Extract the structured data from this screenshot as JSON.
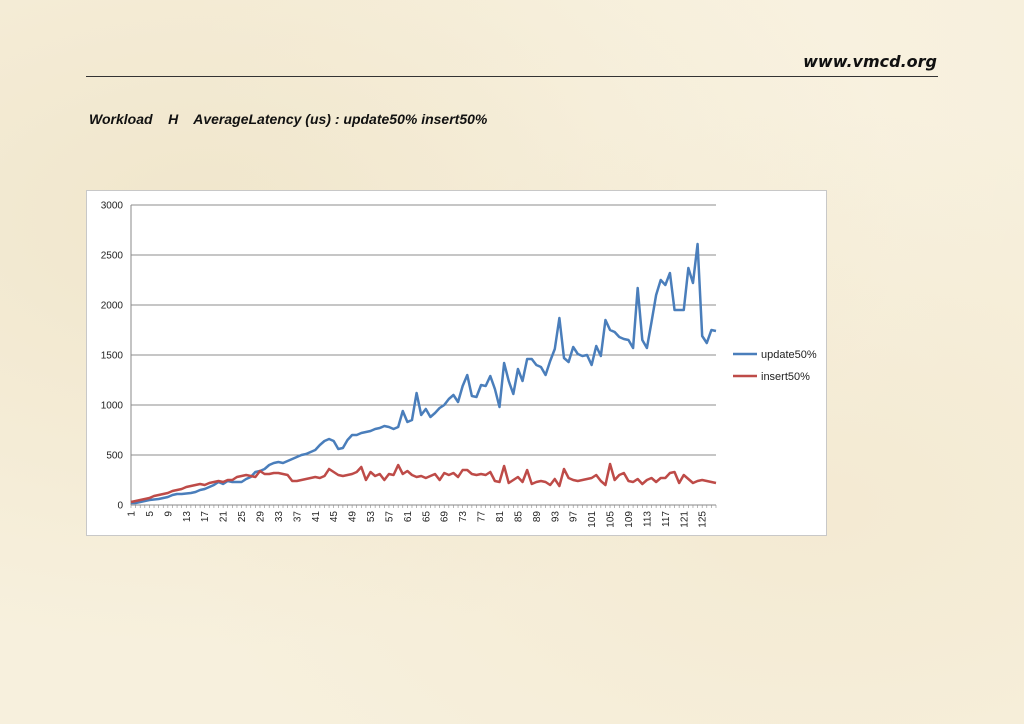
{
  "header": {
    "site": "www.vmcd.org",
    "heading": "Workload    H    AverageLatency (us) : update50% insert50%"
  },
  "colors": {
    "update50%": "#4a7ebb",
    "insert50%": "#be4b48"
  },
  "chart_data": {
    "type": "line",
    "title": "",
    "xlabel": "",
    "ylabel": "",
    "ylim": [
      0,
      3000
    ],
    "yticks": [
      0,
      500,
      1000,
      1500,
      2000,
      2500,
      3000
    ],
    "xticks": [
      1,
      5,
      9,
      13,
      17,
      21,
      25,
      29,
      33,
      37,
      41,
      45,
      49,
      53,
      57,
      61,
      65,
      69,
      73,
      77,
      81,
      85,
      89,
      93,
      97,
      101,
      105,
      109,
      113,
      117,
      121,
      125
    ],
    "grid": true,
    "legend": "right",
    "x_start": 1,
    "x_end": 128,
    "series": [
      {
        "name": "update50%",
        "values": [
          20,
          20,
          30,
          40,
          50,
          55,
          60,
          70,
          80,
          100,
          110,
          110,
          115,
          120,
          130,
          150,
          160,
          180,
          200,
          230,
          210,
          240,
          230,
          230,
          230,
          260,
          280,
          330,
          340,
          360,
          400,
          420,
          430,
          420,
          440,
          460,
          480,
          500,
          510,
          530,
          550,
          600,
          640,
          660,
          640,
          560,
          570,
          650,
          700,
          700,
          720,
          730,
          740,
          760,
          770,
          790,
          780,
          760,
          780,
          940,
          830,
          850,
          1120,
          900,
          960,
          880,
          920,
          970,
          1000,
          1060,
          1100,
          1030,
          1190,
          1300,
          1090,
          1080,
          1200,
          1190,
          1290,
          1160,
          980,
          1420,
          1240,
          1110,
          1360,
          1240,
          1460,
          1460,
          1400,
          1380,
          1300,
          1440,
          1560,
          1870,
          1470,
          1430,
          1580,
          1510,
          1490,
          1500,
          1400,
          1590,
          1490,
          1850,
          1750,
          1730,
          1680,
          1660,
          1650,
          1570,
          2170,
          1650,
          1570,
          1830,
          2100,
          2250,
          2200,
          2320,
          1950,
          1950,
          1950,
          2370,
          2220,
          2610,
          1690,
          1620,
          1750,
          1740
        ]
      },
      {
        "name": "insert50%",
        "values": [
          30,
          40,
          50,
          60,
          70,
          90,
          100,
          110,
          120,
          140,
          150,
          160,
          180,
          190,
          200,
          210,
          200,
          220,
          230,
          240,
          230,
          250,
          250,
          280,
          290,
          300,
          290,
          280,
          340,
          310,
          310,
          320,
          320,
          310,
          300,
          240,
          240,
          250,
          260,
          270,
          280,
          270,
          290,
          360,
          330,
          300,
          290,
          300,
          310,
          330,
          380,
          250,
          330,
          290,
          310,
          250,
          310,
          300,
          400,
          310,
          340,
          300,
          280,
          290,
          270,
          290,
          310,
          250,
          320,
          300,
          320,
          280,
          350,
          350,
          310,
          300,
          310,
          300,
          330,
          240,
          230,
          390,
          220,
          250,
          280,
          230,
          350,
          210,
          230,
          240,
          230,
          200,
          260,
          190,
          360,
          270,
          250,
          240,
          250,
          260,
          270,
          300,
          240,
          200,
          410,
          250,
          300,
          320,
          240,
          230,
          260,
          210,
          250,
          270,
          230,
          270,
          270,
          320,
          330,
          220,
          300,
          260,
          220,
          240,
          250,
          240,
          230,
          220
        ]
      }
    ]
  }
}
